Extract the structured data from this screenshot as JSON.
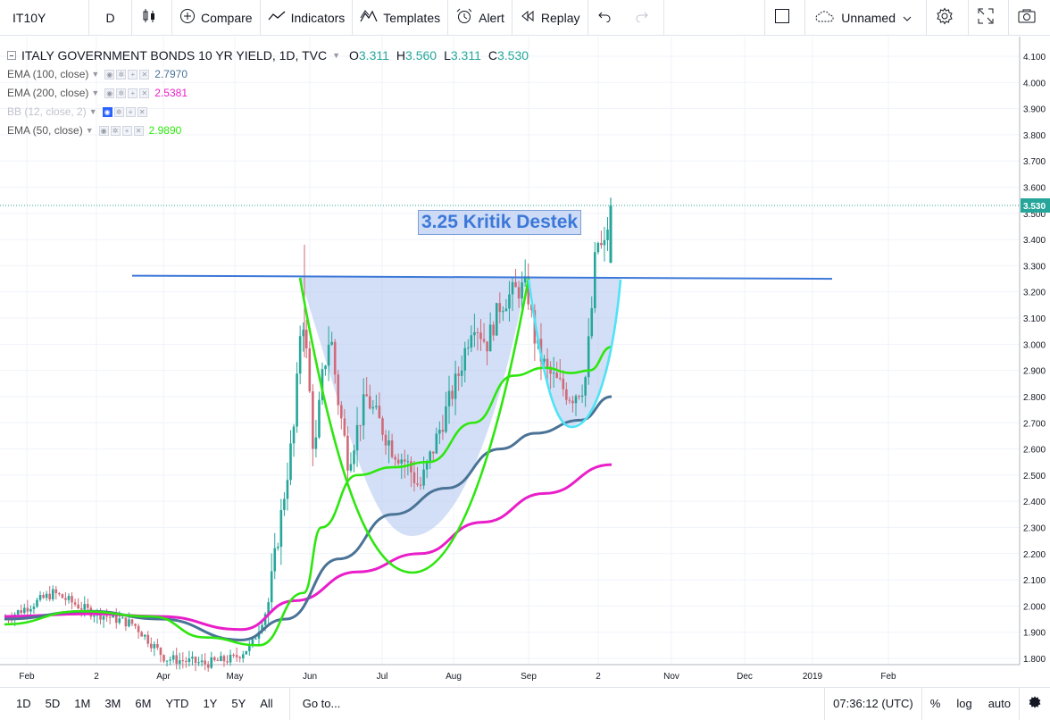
{
  "toolbar": {
    "symbol": "IT10Y",
    "interval": "D",
    "compare": "Compare",
    "indicators": "Indicators",
    "templates": "Templates",
    "alert": "Alert",
    "replay": "Replay",
    "layout_name": "Unnamed"
  },
  "legend": {
    "title": "ITALY GOVERNMENT BONDS 10 YR YIELD, 1D, TVC",
    "open_key": "O",
    "open": "3.311",
    "high_key": "H",
    "high": "3.560",
    "low_key": "L",
    "low": "3.311",
    "close_key": "C",
    "close": "3.530",
    "indicators": [
      {
        "label": "EMA (100, close)",
        "value": "2.7970",
        "color": "#4a7396"
      },
      {
        "label": "EMA (200, close)",
        "value": "2.5381",
        "color": "#e91ec9"
      },
      {
        "label": "BB (12, close, 2)",
        "value": "",
        "color": "#c0c3cc"
      },
      {
        "label": "EMA (50, close)",
        "value": "2.9890",
        "color": "#2ee60f"
      }
    ]
  },
  "annotation": {
    "text": "3.25 Kritik Destek"
  },
  "chart_data": {
    "type": "candlestick",
    "title": "ITALY GOVERNMENT BONDS 10 YR YIELD, 1D, TVC",
    "y_ticks": [
      "4.100",
      "4.000",
      "3.900",
      "3.800",
      "3.700",
      "3.600",
      "3.500",
      "3.400",
      "3.300",
      "3.200",
      "3.100",
      "3.000",
      "2.900",
      "2.800",
      "2.700",
      "2.600",
      "2.500",
      "2.400",
      "2.300",
      "2.200",
      "2.100",
      "2.000",
      "1.900",
      "1.800"
    ],
    "x_ticks": [
      "Feb",
      "2",
      "Apr",
      "May",
      "Jun",
      "Jul",
      "Aug",
      "Sep",
      "2",
      "Nov",
      "Dec",
      "2019",
      "Feb"
    ],
    "last_price": "3.530",
    "ylim": [
      1.8,
      4.1
    ],
    "horizontal_level": 3.25,
    "series": [
      {
        "name": "EMA (100, close)",
        "color": "#4a7396"
      },
      {
        "name": "EMA (200, close)",
        "color": "#e91ec9"
      },
      {
        "name": "EMA (50, close)",
        "color": "#2ee60f"
      }
    ],
    "up_color": "#26a69a",
    "down_color": "#d06a78"
  },
  "bottombar": {
    "ranges": [
      "1D",
      "5D",
      "1M",
      "3M",
      "6M",
      "YTD",
      "1Y",
      "5Y",
      "All"
    ],
    "goto": "Go to...",
    "clock": "07:36:12 (UTC)",
    "percent": "%",
    "log": "log",
    "auto": "auto"
  }
}
